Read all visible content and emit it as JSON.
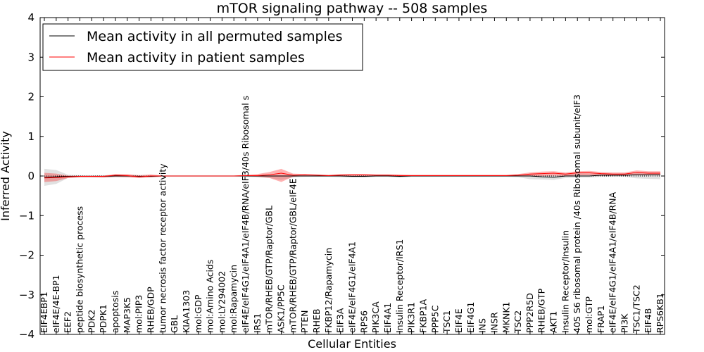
{
  "chart_data": {
    "type": "line",
    "title": "mTOR signaling pathway -- 508 samples",
    "xlabel": "Cellular Entities",
    "ylabel": "Inferred Activity",
    "ylim": [
      -4,
      4
    ],
    "yticks": [
      "4",
      "3",
      "2",
      "1",
      "0",
      "−1",
      "−2",
      "−3",
      "−4"
    ],
    "ytick_values": [
      4,
      3,
      2,
      1,
      0,
      -1,
      -2,
      -3,
      -4
    ],
    "legend": {
      "location": "top-left",
      "entries": [
        {
          "label": "Mean activity in all permuted samples",
          "color": "#000000"
        },
        {
          "label": "Mean activity in patient samples",
          "color": "#ff0000"
        }
      ]
    },
    "categories": [
      "EIF4EBP1",
      "eIF4E/4E-BP1",
      "EEF2",
      "peptide biosynthetic process",
      "PDK2",
      "PDPK1",
      "apoptosis",
      "MAP3K5",
      "mol:PIP3",
      "RHEB/GDP",
      "tumor necrosis factor receptor activity",
      "GBL",
      "KIAA1303",
      "mol:GDP",
      "mol:Amino Acids",
      "mol:LY294002",
      "mol:Rapamycin",
      "eIF4E/eIF4G1/eIF4A1/eIF4B/RNA/eIF3/40s Ribosomal s",
      "IRS1",
      "mTOR/RHEB/GTP/Raptor/GBL",
      "ASK1/PP5C",
      "mTOR/RHEB/GTP/Raptor/GBL/eIF4E",
      "PTEN",
      "RHEB",
      "FKBP12/Rapamycin",
      "EIF3A",
      "eIF4E/eIF4G1/eIF4A1",
      "RPS6",
      "PIK3CA",
      "EIF4A1",
      "Insulin Receptor/IRS1",
      "PIK3R1",
      "FKBP1A",
      "PPP5C",
      "TSC1",
      "EIF4E",
      "EIF4G1",
      "INS",
      "INSR",
      "MKNK1",
      "TSC2",
      "PPP2R5D",
      "RHEB/GTP",
      "AKT1",
      "Insulin Receptor/Insulin",
      "40S S6 ribosomal protein /40s Ribosomal subunit/eIF3",
      "mol:GTP",
      "FRAP1",
      "eIF4E/eIF4G1/eIF4A1/eIF4B/RNA",
      "PI3K",
      "TSC1/TSC2",
      "EIF4B",
      "RPS6KB1"
    ],
    "series": [
      {
        "name": "Mean activity in all permuted samples",
        "color": "#000000",
        "values": [
          -0.03,
          -0.02,
          -0.01,
          -0.01,
          -0.01,
          -0.01,
          0.0,
          0.0,
          -0.01,
          -0.01,
          0.0,
          0.0,
          0.0,
          0.0,
          0.0,
          0.0,
          0.0,
          0.0,
          0.0,
          0.0,
          0.0,
          0.0,
          0.0,
          0.0,
          0.0,
          0.0,
          -0.01,
          -0.01,
          0.0,
          0.0,
          -0.01,
          0.0,
          0.0,
          0.0,
          0.0,
          0.0,
          0.0,
          0.0,
          0.0,
          0.0,
          0.0,
          0.0,
          -0.02,
          -0.03,
          0.0,
          0.0,
          0.0,
          0.02,
          0.02,
          0.02,
          0.03,
          0.03,
          0.03
        ],
        "band_upper": [
          0.18,
          0.15,
          0.03,
          0.02,
          0.02,
          0.02,
          0.02,
          0.02,
          0.02,
          0.02,
          0.02,
          0.02,
          0.02,
          0.02,
          0.02,
          0.02,
          0.02,
          0.02,
          0.02,
          0.02,
          0.02,
          0.02,
          0.02,
          0.02,
          0.02,
          0.02,
          0.02,
          0.02,
          0.02,
          0.02,
          0.02,
          0.02,
          0.02,
          0.02,
          0.02,
          0.02,
          0.02,
          0.02,
          0.02,
          0.02,
          0.02,
          0.04,
          0.04,
          0.03,
          0.06,
          0.07,
          0.06,
          0.05,
          0.05,
          0.06,
          0.08,
          0.09,
          0.09
        ],
        "band_lower": [
          -0.25,
          -0.2,
          -0.05,
          -0.04,
          -0.04,
          -0.04,
          -0.03,
          -0.03,
          -0.04,
          -0.04,
          -0.02,
          -0.02,
          -0.02,
          -0.02,
          -0.02,
          -0.02,
          -0.02,
          -0.02,
          -0.03,
          -0.05,
          -0.1,
          -0.03,
          -0.02,
          -0.02,
          -0.02,
          -0.03,
          -0.04,
          -0.04,
          -0.02,
          -0.02,
          -0.04,
          -0.02,
          -0.02,
          -0.02,
          -0.02,
          -0.02,
          -0.02,
          -0.02,
          -0.02,
          -0.02,
          -0.03,
          -0.08,
          -0.09,
          -0.1,
          -0.05,
          -0.04,
          -0.04,
          -0.02,
          -0.02,
          -0.02,
          -0.06,
          -0.07,
          -0.08
        ]
      },
      {
        "name": "Mean activity in patient samples",
        "color": "#ff0000",
        "values": [
          -0.05,
          -0.04,
          -0.02,
          -0.01,
          -0.01,
          -0.01,
          0.02,
          0.01,
          -0.02,
          0.0,
          0.0,
          0.0,
          0.0,
          0.0,
          0.0,
          0.0,
          0.0,
          0.01,
          0.01,
          0.03,
          0.07,
          0.02,
          0.03,
          0.02,
          0.01,
          0.02,
          0.03,
          0.03,
          0.02,
          0.02,
          0.01,
          0.01,
          0.01,
          0.01,
          0.01,
          0.01,
          0.01,
          0.01,
          0.01,
          0.01,
          0.02,
          0.05,
          0.06,
          0.07,
          0.05,
          0.08,
          0.08,
          0.06,
          0.05,
          0.05,
          0.09,
          0.07,
          0.07
        ],
        "band_upper": [
          0.08,
          0.06,
          0.01,
          0.01,
          0.01,
          0.01,
          0.05,
          0.05,
          0.02,
          0.04,
          0.01,
          0.01,
          0.01,
          0.01,
          0.01,
          0.01,
          0.01,
          0.03,
          0.05,
          0.1,
          0.18,
          0.06,
          0.05,
          0.04,
          0.03,
          0.05,
          0.05,
          0.05,
          0.04,
          0.04,
          0.04,
          0.03,
          0.03,
          0.03,
          0.03,
          0.03,
          0.03,
          0.03,
          0.03,
          0.03,
          0.05,
          0.09,
          0.11,
          0.12,
          0.09,
          0.12,
          0.13,
          0.1,
          0.09,
          0.09,
          0.14,
          0.12,
          0.12
        ],
        "band_lower": [
          -0.15,
          -0.13,
          -0.05,
          -0.03,
          -0.03,
          -0.04,
          -0.02,
          -0.03,
          -0.05,
          -0.03,
          -0.01,
          -0.01,
          -0.01,
          -0.01,
          -0.01,
          -0.01,
          -0.01,
          -0.01,
          -0.02,
          -0.05,
          -0.15,
          -0.02,
          0.0,
          0.0,
          -0.01,
          -0.01,
          0.0,
          0.0,
          0.0,
          0.0,
          -0.01,
          -0.01,
          -0.01,
          -0.01,
          -0.01,
          -0.01,
          -0.01,
          -0.01,
          -0.01,
          -0.01,
          -0.01,
          0.0,
          0.0,
          0.01,
          0.0,
          0.02,
          0.02,
          0.01,
          0.01,
          0.01,
          0.03,
          0.02,
          0.02
        ]
      }
    ]
  }
}
